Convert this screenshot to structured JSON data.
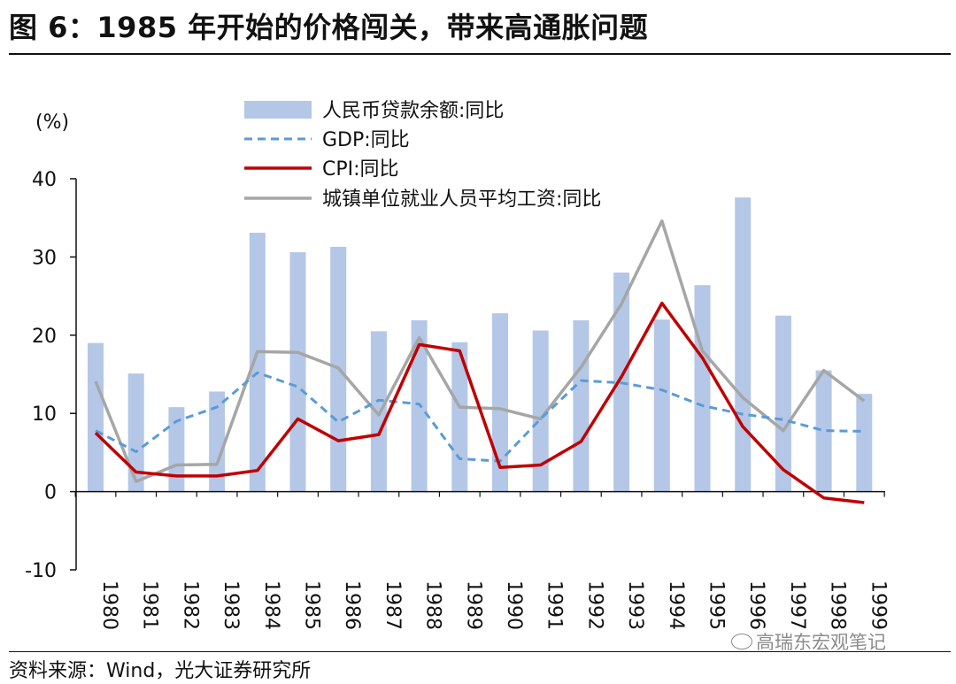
{
  "page": {
    "title": "图 6：1985 年开始的价格闯关，带来高通胀问题",
    "source": "资料来源：Wind，光大证券研究所",
    "watermark": "高瑞东宏观笔记"
  },
  "colors": {
    "bar": "#b4c7e7",
    "gdp": "#5b9bd5",
    "cpi": "#c00000",
    "wage": "#a6a6a6"
  },
  "chart_data": {
    "type": "bar",
    "ylabel": "(%)",
    "ylim": [
      -10,
      40
    ],
    "yticks": [
      -10,
      0,
      10,
      20,
      30,
      40
    ],
    "grid": false,
    "legend_position": "top",
    "categories": [
      "1980",
      "1981",
      "1982",
      "1983",
      "1984",
      "1985",
      "1986",
      "1987",
      "1988",
      "1989",
      "1990",
      "1991",
      "1992",
      "1993",
      "1994",
      "1995",
      "1996",
      "1997",
      "1998",
      "1999"
    ],
    "series": [
      {
        "name": "人民币贷款余额:同比",
        "kind": "bar",
        "values": [
          19.0,
          15.1,
          10.8,
          12.8,
          33.1,
          30.6,
          31.3,
          20.5,
          21.9,
          19.1,
          22.8,
          20.6,
          21.9,
          28.0,
          22.0,
          26.4,
          37.6,
          22.5,
          15.5,
          12.5
        ]
      },
      {
        "name": "GDP:同比",
        "kind": "line-dashed",
        "values": [
          7.8,
          5.1,
          9.0,
          10.8,
          15.2,
          13.4,
          8.9,
          11.7,
          11.2,
          4.2,
          3.9,
          9.3,
          14.2,
          13.9,
          13.0,
          11.0,
          9.9,
          9.2,
          7.8,
          7.7
        ]
      },
      {
        "name": "CPI:同比",
        "kind": "line",
        "values": [
          7.5,
          2.5,
          2.0,
          2.0,
          2.7,
          9.3,
          6.5,
          7.3,
          18.8,
          18.0,
          3.1,
          3.4,
          6.4,
          14.7,
          24.1,
          17.1,
          8.3,
          2.8,
          -0.8,
          -1.4
        ]
      },
      {
        "name": "城镇单位就业人员平均工资:同比",
        "kind": "line",
        "values": [
          14.1,
          1.3,
          3.4,
          3.5,
          17.9,
          17.8,
          15.8,
          9.8,
          19.7,
          10.8,
          10.6,
          9.3,
          15.9,
          24.0,
          34.6,
          18.0,
          12.0,
          7.8,
          15.5,
          11.6
        ]
      }
    ]
  }
}
